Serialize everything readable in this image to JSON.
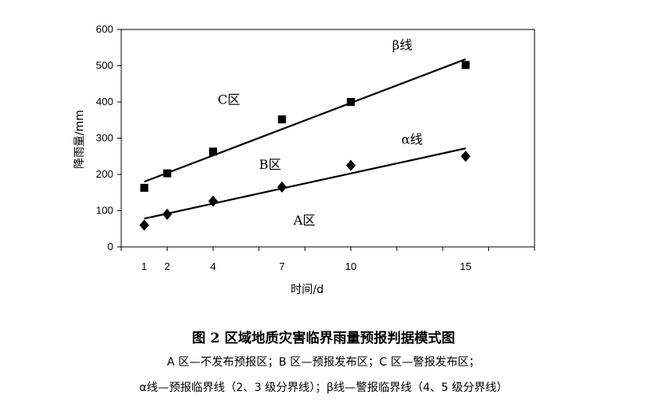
{
  "chart_data": {
    "type": "scatter",
    "x": [
      1,
      2,
      4,
      7,
      10,
      15
    ],
    "xlabel": "时间/d",
    "ylabel": "降雨量/mm",
    "xlim": [
      0,
      18
    ],
    "ylim": [
      0,
      600
    ],
    "yticks": [
      0,
      100,
      200,
      300,
      400,
      500,
      600
    ],
    "xticks": [
      1,
      2,
      4,
      7,
      10,
      15
    ],
    "grid": false,
    "series": [
      {
        "marker": "square",
        "values": [
          163,
          203,
          263,
          352,
          400,
          502
        ]
      },
      {
        "marker": "diamond",
        "values": [
          60,
          90,
          126,
          165,
          225,
          250
        ]
      }
    ],
    "lines": [
      {
        "name": "β线",
        "from": [
          1,
          180
        ],
        "to": [
          15,
          518
        ]
      },
      {
        "name": "α线",
        "from": [
          1,
          78
        ],
        "to": [
          15,
          272
        ]
      }
    ],
    "annotations": [
      {
        "text": "β线",
        "x": 11.8,
        "y": 545
      },
      {
        "text": "α线",
        "x": 12.2,
        "y": 285
      },
      {
        "text": "C区",
        "x": 4.2,
        "y": 395
      },
      {
        "text": "B区",
        "x": 6.0,
        "y": 215
      },
      {
        "text": "A区",
        "x": 7.5,
        "y": 62
      }
    ]
  },
  "figure": {
    "title": "图 2   区域地质灾害临界雨量预报判据模式图",
    "note_line1": "A 区—不发布预报区；B 区—预报发布区；C 区—警报发布区；",
    "note_line2": "α线—预报临界线（2、3 级分界线）；β线—警报临界线（4、5 级分界线）"
  }
}
